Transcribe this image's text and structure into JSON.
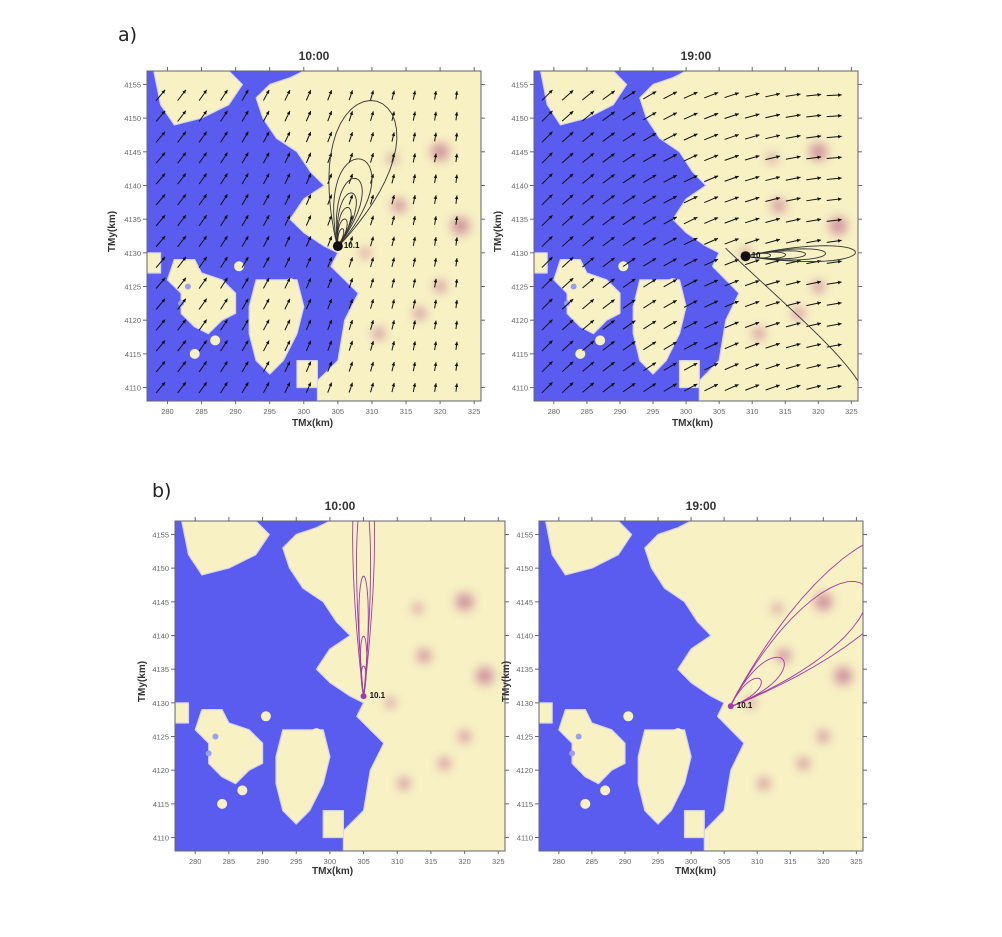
{
  "figure": {
    "panels": [
      {
        "id": "a",
        "label": "a)"
      },
      {
        "id": "b",
        "label": "b)"
      }
    ],
    "plots": [
      {
        "panel": "a",
        "title": "10:00",
        "xlabel": "TMx(km)",
        "ylabel": "TMy(km)",
        "overlay": "wind-vectors+black-plume-contours",
        "plume_direction": "north-northeast",
        "contour_label": "10.1"
      },
      {
        "panel": "a",
        "title": "19:00",
        "xlabel": "TMx(km)",
        "ylabel": "TMy(km)",
        "overlay": "wind-vectors+black-plume-contours",
        "plume_direction": "east",
        "contour_label": "10"
      },
      {
        "panel": "b",
        "title": "10:00",
        "xlabel": "TMx(km)",
        "ylabel": "TMy(km)",
        "overlay": "magenta-plume-contours",
        "plume_direction": "north",
        "contour_label": "10.1"
      },
      {
        "panel": "b",
        "title": "19:00",
        "xlabel": "TMx(km)",
        "ylabel": "TMy(km)",
        "overlay": "magenta-plume-contours",
        "plume_direction": "northeast",
        "contour_label": "10.1"
      }
    ],
    "x_ticks": [
      "280",
      "285",
      "290",
      "295",
      "300",
      "305",
      "310",
      "315",
      "320",
      "325"
    ],
    "y_ticks": [
      "4155",
      "4150",
      "4145",
      "4140",
      "4135",
      "4130",
      "4125",
      "4120",
      "4115",
      "4110"
    ],
    "x_range": [
      277,
      326
    ],
    "y_range": [
      4108,
      4157
    ],
    "colors": {
      "water": "#5a5cf0",
      "land": "#f7f1c4",
      "urban": "#b0467f",
      "contour_a": "#333333",
      "contour_b": "#a23aa8",
      "vector": "#111111"
    }
  }
}
